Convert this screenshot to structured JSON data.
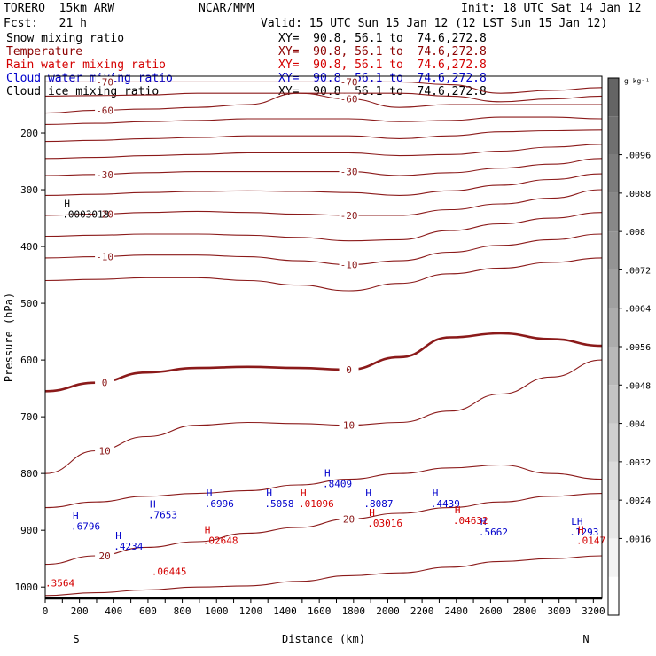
{
  "header": {
    "model": "TORERO  15km ARW",
    "center": "NCAR/MMM",
    "init": "Init: 18 UTC Sat 14 Jan 12",
    "fcst": "Fcst:   21 h",
    "valid": "Valid: 15 UTC Sun 15 Jan 12 (12 LST Sun 15 Jan 12)",
    "fields": [
      {
        "name": "Snow mixing ratio",
        "color": "#000000"
      },
      {
        "name": "Temperature",
        "color": "#8b0000"
      },
      {
        "name": "Rain water mixing ratio",
        "color": "#d40000"
      },
      {
        "name": "Cloud water mixing ratio",
        "color": "#0000cc"
      },
      {
        "name": "Cloud ice mixing ratio",
        "color": "#000000"
      }
    ],
    "xy": "XY=  90.8, 56.1 to  74.6,272.8"
  },
  "chart_data": {
    "type": "contour",
    "xlabel": "Distance (km)",
    "ylabel": "Pressure (hPa)",
    "xlim": [
      0,
      3250
    ],
    "ylim": [
      1020,
      100
    ],
    "x_ticks": [
      0,
      100,
      200,
      300,
      400,
      500,
      600,
      700,
      800,
      900,
      1000,
      1100,
      1200,
      1300,
      1400,
      1500,
      1600,
      1700,
      1800,
      1900,
      2000,
      2100,
      2200,
      2300,
      2400,
      2500,
      2600,
      2700,
      2800,
      2900,
      3000,
      3100,
      3200
    ],
    "x_tick_labels": [
      "0",
      "200",
      "400",
      "600",
      "800",
      "1000",
      "1200",
      "1400",
      "1600",
      "1800",
      "2000",
      "2200",
      "2400",
      "2600",
      "2800",
      "3000",
      "3200"
    ],
    "y_tick_labels": [
      "200",
      "300",
      "400",
      "500",
      "600",
      "700",
      "800",
      "900",
      "1000"
    ],
    "end_labels": {
      "left": "S",
      "right": "N"
    },
    "colorbar": {
      "unit": "g kg⁻¹",
      "labels": [
        ".0016",
        ".0024",
        ".0032",
        ".004",
        ".0048",
        ".0056",
        ".0064",
        ".0072",
        ".008",
        ".0088",
        ".0096"
      ],
      "colors": [
        "#ffffff",
        "#f4f4f4",
        "#e8e8e8",
        "#dcdcdc",
        "#d0d0d0",
        "#c4c4c4",
        "#b8b8b8",
        "#acacac",
        "#a0a0a0",
        "#949494",
        "#888888",
        "#7c7c7c",
        "#707070",
        "#646464"
      ]
    },
    "temperature_isotherms": [
      {
        "label": "-70",
        "y": [
          110,
          110,
          110,
          110,
          110,
          110,
          110,
          110,
          115,
          130,
          125,
          120
        ]
      },
      {
        "label": "",
        "y": [
          135,
          134,
          133,
          130,
          130,
          130,
          130,
          130,
          135,
          145,
          140,
          135
        ]
      },
      {
        "label": "-60",
        "y": [
          165,
          160,
          158,
          155,
          150,
          130,
          140,
          155,
          150,
          150,
          150,
          150
        ]
      },
      {
        "label": "",
        "y": [
          185,
          183,
          180,
          178,
          175,
          175,
          175,
          180,
          178,
          172,
          172,
          175
        ]
      },
      {
        "label": "",
        "y": [
          215,
          213,
          210,
          208,
          205,
          205,
          205,
          210,
          205,
          198,
          196,
          195
        ]
      },
      {
        "label": "",
        "y": [
          245,
          243,
          240,
          238,
          235,
          235,
          235,
          240,
          238,
          232,
          225,
          220
        ]
      },
      {
        "label": "-30",
        "y": [
          275,
          273,
          270,
          268,
          268,
          268,
          268,
          275,
          270,
          262,
          255,
          245
        ]
      },
      {
        "label": "",
        "y": [
          310,
          308,
          305,
          303,
          302,
          303,
          305,
          310,
          302,
          292,
          282,
          272
        ]
      },
      {
        "label": "-20",
        "y": [
          345,
          343,
          340,
          338,
          340,
          343,
          345,
          345,
          335,
          325,
          315,
          300
        ]
      },
      {
        "label": "",
        "y": [
          382,
          380,
          378,
          378,
          380,
          384,
          390,
          388,
          372,
          360,
          350,
          340
        ]
      },
      {
        "label": "-10",
        "y": [
          420,
          418,
          415,
          415,
          418,
          425,
          432,
          425,
          410,
          398,
          388,
          378
        ]
      },
      {
        "label": "",
        "y": [
          460,
          458,
          455,
          455,
          460,
          468,
          478,
          465,
          448,
          438,
          428,
          420
        ]
      },
      {
        "label": "0",
        "y": [
          655,
          640,
          622,
          614,
          612,
          614,
          617,
          595,
          560,
          553,
          563,
          575
        ],
        "bold": true
      },
      {
        "label": "10",
        "y": [
          800,
          760,
          735,
          715,
          710,
          712,
          715,
          710,
          690,
          660,
          630,
          600
        ]
      },
      {
        "label": "",
        "y": [
          860,
          850,
          840,
          835,
          830,
          820,
          810,
          800,
          790,
          785,
          800,
          810
        ]
      },
      {
        "label": "20",
        "y": [
          960,
          945,
          930,
          920,
          905,
          895,
          880,
          870,
          860,
          850,
          840,
          835
        ]
      },
      {
        "label": "",
        "y": [
          1015,
          1010,
          1005,
          1000,
          998,
          990,
          980,
          975,
          965,
          955,
          950,
          945
        ]
      }
    ],
    "extrema": [
      {
        "x": 100,
        "p": 330,
        "kind": "H",
        "value": ".0003018",
        "color": "#000000"
      },
      {
        "x": 150,
        "p": 880,
        "kind": "H",
        "value": ".6796",
        "color": "#0000cc"
      },
      {
        "x": 400,
        "p": 915,
        "kind": "H",
        "value": ".4234",
        "color": "#0000cc"
      },
      {
        "x": 600,
        "p": 860,
        "kind": "H",
        "value": ".7653",
        "color": "#0000cc"
      },
      {
        "x": 930,
        "p": 840,
        "kind": "H",
        "value": ".6996",
        "color": "#0000cc"
      },
      {
        "x": 1280,
        "p": 840,
        "kind": "H",
        "value": ".5058",
        "color": "#0000cc"
      },
      {
        "x": 1620,
        "p": 805,
        "kind": "H",
        "value": ".8409",
        "color": "#0000cc"
      },
      {
        "x": 1860,
        "p": 840,
        "kind": "H",
        "value": ".8087",
        "color": "#0000cc"
      },
      {
        "x": 2250,
        "p": 840,
        "kind": "H",
        "value": ".4439",
        "color": "#0000cc"
      },
      {
        "x": 2530,
        "p": 890,
        "kind": "H",
        "value": ".5662",
        "color": "#0000cc"
      },
      {
        "x": 3060,
        "p": 890,
        "kind": "LH",
        "value": ".1293",
        "color": "#0000cc"
      },
      {
        "x": 920,
        "p": 905,
        "kind": "H",
        "value": ".02648",
        "color": "#d40000"
      },
      {
        "x": 1480,
        "p": 840,
        "kind": "H",
        "value": ".01096",
        "color": "#d40000"
      },
      {
        "x": 1880,
        "p": 875,
        "kind": "H",
        "value": ".03016",
        "color": "#d40000"
      },
      {
        "x": 2380,
        "p": 870,
        "kind": "H",
        "value": ".04632",
        "color": "#d40000"
      },
      {
        "x": 3100,
        "p": 905,
        "kind": "H",
        "value": ".0147",
        "color": "#d40000"
      },
      {
        "x": 0,
        "p": 980,
        "kind": "",
        "value": ".3564",
        "color": "#d40000"
      },
      {
        "x": 620,
        "p": 960,
        "kind": "",
        "value": ".06445",
        "color": "#d40000"
      }
    ]
  }
}
